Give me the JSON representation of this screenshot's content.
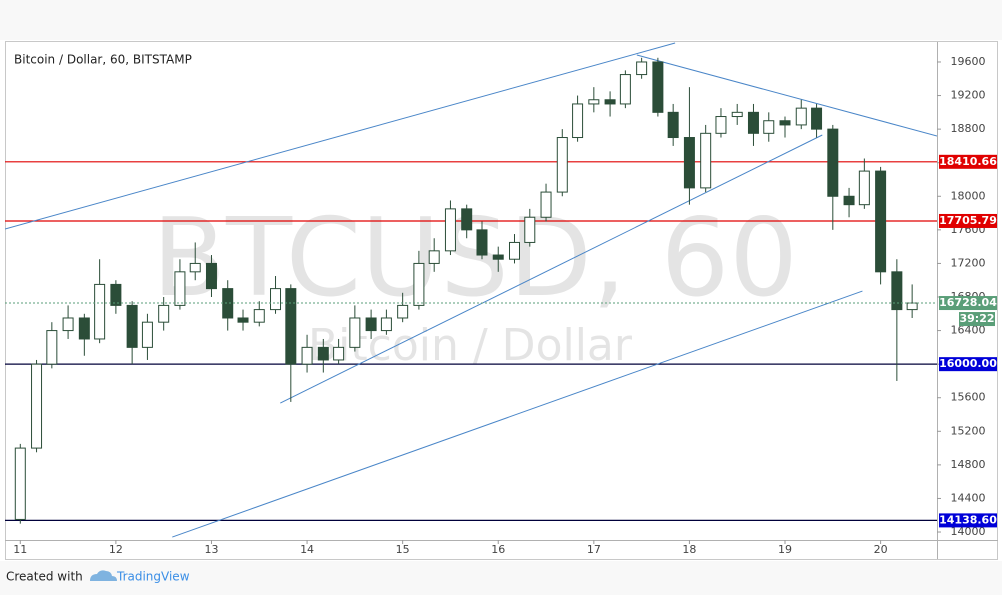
{
  "chart_data": {
    "type": "candlestick",
    "title": "Bitcoin / Dollar, 60, BITSTAMP",
    "watermark": "BTCUSD, 60",
    "watermark_subtitle": "Bitcoin / Dollar",
    "x": [
      11.0,
      11.17,
      11.33,
      11.5,
      11.67,
      11.83,
      12.0,
      12.17,
      12.33,
      12.5,
      12.67,
      12.83,
      13.0,
      13.17,
      13.33,
      13.5,
      13.67,
      13.83,
      14.0,
      14.17,
      14.33,
      14.5,
      14.67,
      14.83,
      15.0,
      15.17,
      15.33,
      15.5,
      15.67,
      15.83,
      16.0,
      16.17,
      16.33,
      16.5,
      16.67,
      16.83,
      17.0,
      17.17,
      17.33,
      17.5,
      17.67,
      17.83,
      18.0,
      18.17,
      18.33,
      18.5,
      18.67,
      18.83,
      19.0,
      19.17,
      19.33,
      19.5,
      19.67,
      19.83,
      20.0,
      20.17,
      20.33
    ],
    "open": [
      14150,
      15000,
      16000,
      16400,
      16550,
      16300,
      16950,
      16700,
      16200,
      16500,
      16700,
      17100,
      17200,
      16900,
      16550,
      16500,
      16650,
      16900,
      16000,
      16200,
      16050,
      16200,
      16550,
      16400,
      16550,
      16700,
      17200,
      17350,
      17850,
      17600,
      17300,
      17250,
      17450,
      17750,
      18050,
      18700,
      19100,
      19150,
      19100,
      19450,
      19600,
      19000,
      18700,
      18100,
      18750,
      18950,
      19000,
      18750,
      18900,
      18850,
      19050,
      18800,
      18000,
      17900,
      18300,
      17100,
      16650
    ],
    "high": [
      15050,
      16050,
      16500,
      16700,
      16600,
      17250,
      17000,
      16750,
      16600,
      16800,
      17250,
      17450,
      17300,
      17000,
      16650,
      16750,
      17050,
      16950,
      16350,
      16300,
      16300,
      16700,
      16650,
      16650,
      16850,
      17350,
      17500,
      17950,
      17900,
      17700,
      17400,
      17550,
      17850,
      18150,
      18800,
      19200,
      19300,
      19250,
      19500,
      19650,
      19650,
      19100,
      19300,
      18850,
      19050,
      19100,
      19100,
      19000,
      18950,
      19150,
      19100,
      18850,
      18100,
      18450,
      18350,
      17250,
      16950
    ],
    "low": [
      14100,
      14950,
      15950,
      16300,
      16100,
      16250,
      16600,
      16000,
      16050,
      16400,
      16650,
      17000,
      16800,
      16400,
      16400,
      16450,
      16600,
      15550,
      15900,
      15900,
      16000,
      16150,
      16300,
      16350,
      16500,
      16650,
      17100,
      17300,
      17500,
      17250,
      17100,
      17200,
      17400,
      17700,
      18000,
      18650,
      19000,
      18950,
      19050,
      19400,
      18950,
      18600,
      17900,
      18050,
      18700,
      18850,
      18600,
      18650,
      18700,
      18800,
      18700,
      17600,
      17750,
      17850,
      16950,
      15800,
      16550
    ],
    "close": [
      15000,
      16000,
      16400,
      16550,
      16300,
      16950,
      16700,
      16200,
      16500,
      16700,
      17100,
      17200,
      16900,
      16550,
      16500,
      16650,
      16900,
      16000,
      16200,
      16050,
      16200,
      16550,
      16400,
      16550,
      16700,
      17200,
      17350,
      17850,
      17600,
      17300,
      17250,
      17450,
      17750,
      18050,
      18700,
      19100,
      19150,
      19100,
      19450,
      19600,
      19000,
      18700,
      18100,
      18750,
      18950,
      19000,
      18750,
      18900,
      18850,
      19050,
      18800,
      18000,
      17900,
      18300,
      17100,
      16650,
      16728.04
    ],
    "up_color": "#ffffff",
    "down_color": "#2b4d38",
    "wick_color": "#2b4d38",
    "xlim": [
      10.84,
      20.59
    ],
    "xticks": [
      11,
      12,
      13,
      14,
      15,
      16,
      17,
      18,
      19,
      20
    ],
    "ylim": [
      13905,
      19838
    ],
    "yticks": [
      14000,
      14400,
      14800,
      15200,
      15600,
      16000,
      16400,
      16800,
      17200,
      17600,
      18000,
      18400,
      18800,
      19200,
      19600
    ],
    "levels": [
      {
        "value": 18410.66,
        "color": "#e00000"
      },
      {
        "value": 17705.79,
        "color": "#e00000"
      },
      {
        "value": 16000,
        "label": "16000.00",
        "color": "#0000d8",
        "line_color": "#00003a"
      },
      {
        "value": 14138.6,
        "label": "14138.60",
        "color": "#0000d8",
        "line_color": "#00003a"
      }
    ],
    "last_price": {
      "value": 16728.04,
      "color": "#5a9e78"
    },
    "countdown": "39:22",
    "trendlines": [
      {
        "points": [
          [
            10.84,
            17610
          ],
          [
            17.85,
            19826
          ]
        ],
        "color": "#4a86c8"
      },
      {
        "points": [
          [
            13.72,
            15537
          ],
          [
            19.39,
            18730
          ]
        ],
        "color": "#4a86c8"
      },
      {
        "points": [
          [
            12.59,
            13940
          ],
          [
            19.81,
            16871
          ]
        ],
        "color": "#4a86c8"
      },
      {
        "points": [
          [
            17.45,
            19683
          ],
          [
            20.59,
            18718
          ]
        ],
        "color": "#4a86c8"
      }
    ]
  },
  "footer": {
    "text": "Created with",
    "brand": "TradingView"
  }
}
